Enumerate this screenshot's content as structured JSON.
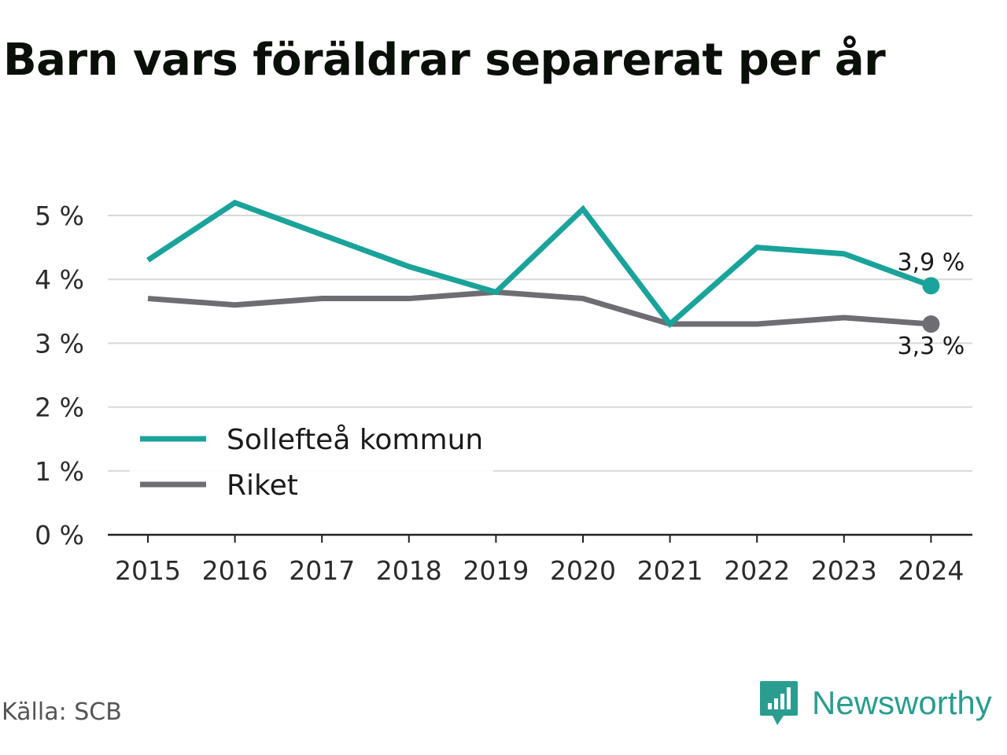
{
  "title": "Barn vars föräldrar separerat per år",
  "source": "Källa: SCB",
  "brand": "Newsworthy",
  "colors": {
    "accent": "#1aa39a",
    "secondary": "#6d6d73",
    "brand": "#2a9d8f"
  },
  "chart_data": {
    "type": "line",
    "x": [
      "2015",
      "2016",
      "2017",
      "2018",
      "2019",
      "2020",
      "2021",
      "2022",
      "2023",
      "2024"
    ],
    "ylim": [
      0,
      5.5
    ],
    "yticks": [
      0,
      1,
      2,
      3,
      4,
      5
    ],
    "ytick_labels": [
      "0 %",
      "1 %",
      "2 %",
      "3 %",
      "4 %",
      "5 %"
    ],
    "grid": true,
    "legend_placement": "bottom-left",
    "series": [
      {
        "name": "Sollefteå kommun",
        "color": "#1aa39a",
        "values": [
          4.3,
          5.2,
          4.7,
          4.2,
          3.8,
          5.1,
          3.3,
          4.5,
          4.4,
          3.9
        ],
        "end_label": "3,9 %"
      },
      {
        "name": "Riket",
        "color": "#6d6d73",
        "values": [
          3.7,
          3.6,
          3.7,
          3.7,
          3.8,
          3.7,
          3.3,
          3.3,
          3.4,
          3.3
        ],
        "end_label": "3,3 %"
      }
    ]
  }
}
